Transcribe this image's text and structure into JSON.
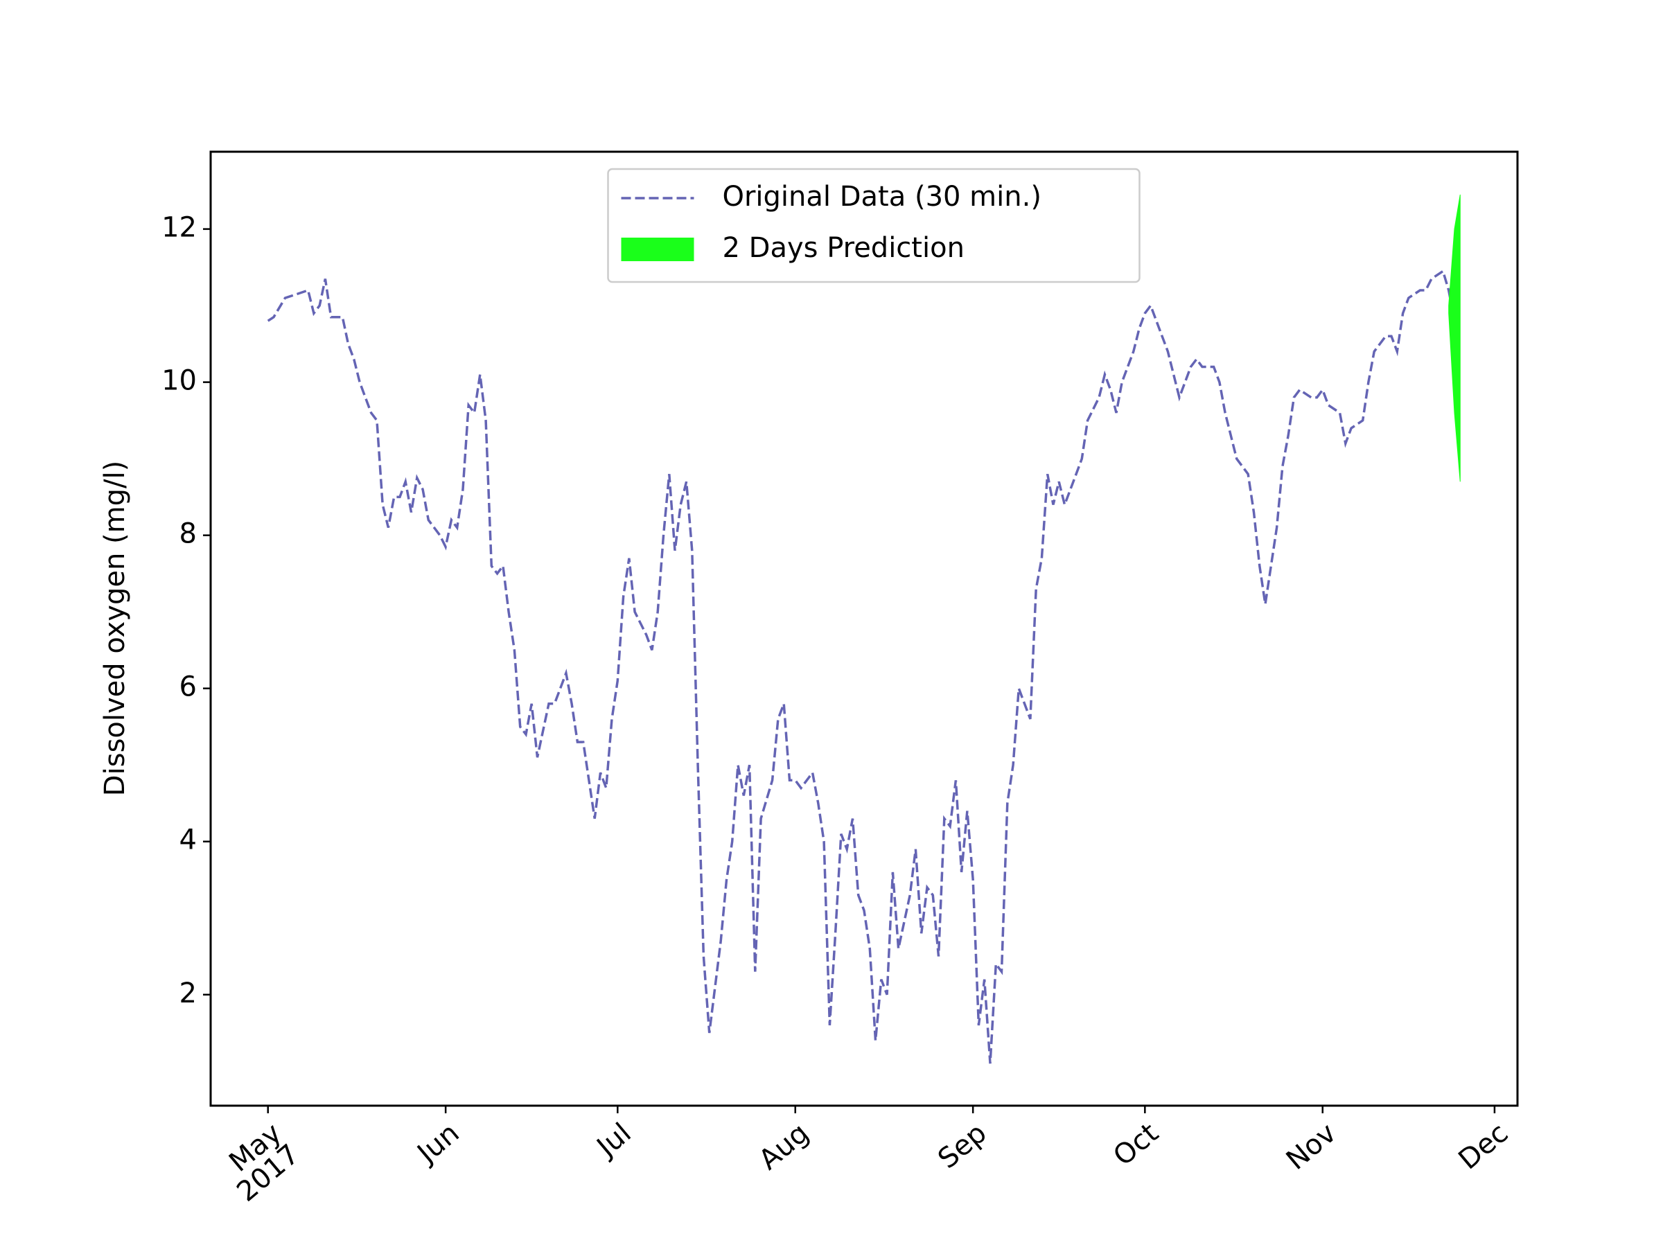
{
  "chart_data": {
    "type": "line",
    "ylabel": "Dissolved oxygen (mg/l)",
    "xlim": [
      "2017-04-21",
      "2017-12-05"
    ],
    "xticks": [
      {
        "value": "2017-05-01",
        "label": "May\n2017"
      },
      {
        "value": "2017-06-01",
        "label": "Jun"
      },
      {
        "value": "2017-07-01",
        "label": "Jul"
      },
      {
        "value": "2017-08-01",
        "label": "Aug"
      },
      {
        "value": "2017-09-01",
        "label": "Sep"
      },
      {
        "value": "2017-10-01",
        "label": "Oct"
      },
      {
        "value": "2017-11-01",
        "label": "Nov"
      },
      {
        "value": "2017-12-01",
        "label": "Dec"
      }
    ],
    "ylim": [
      0.55,
      13.01
    ],
    "yticks": [
      2,
      4,
      6,
      8,
      10,
      12
    ],
    "legend": "upper center",
    "series": [
      {
        "name": "Original Data (30 min.)",
        "color": "#6464b4",
        "style": "dashed",
        "x": [
          "2017-05-01",
          "2017-05-02",
          "2017-05-04",
          "2017-05-06",
          "2017-05-08",
          "2017-05-09",
          "2017-05-10",
          "2017-05-11",
          "2017-05-12",
          "2017-05-14",
          "2017-05-15",
          "2017-05-16",
          "2017-05-17",
          "2017-05-18",
          "2017-05-19",
          "2017-05-20",
          "2017-05-21",
          "2017-05-22",
          "2017-05-23",
          "2017-05-24",
          "2017-05-25",
          "2017-05-26",
          "2017-05-27",
          "2017-05-28",
          "2017-05-29",
          "2017-05-31",
          "2017-06-01",
          "2017-06-02",
          "2017-06-03",
          "2017-06-04",
          "2017-06-05",
          "2017-06-06",
          "2017-06-07",
          "2017-06-08",
          "2017-06-09",
          "2017-06-10",
          "2017-06-11",
          "2017-06-12",
          "2017-06-13",
          "2017-06-14",
          "2017-06-15",
          "2017-06-16",
          "2017-06-17",
          "2017-06-19",
          "2017-06-20",
          "2017-06-22",
          "2017-06-23",
          "2017-06-24",
          "2017-06-25",
          "2017-06-27",
          "2017-06-28",
          "2017-06-29",
          "2017-06-30",
          "2017-07-01",
          "2017-07-02",
          "2017-07-03",
          "2017-07-04",
          "2017-07-06",
          "2017-07-07",
          "2017-07-08",
          "2017-07-09",
          "2017-07-10",
          "2017-07-11",
          "2017-07-12",
          "2017-07-13",
          "2017-07-14",
          "2017-07-15",
          "2017-07-16",
          "2017-07-17",
          "2017-07-19",
          "2017-07-20",
          "2017-07-21",
          "2017-07-22",
          "2017-07-23",
          "2017-07-24",
          "2017-07-25",
          "2017-07-26",
          "2017-07-28",
          "2017-07-29",
          "2017-07-30",
          "2017-07-31",
          "2017-08-01",
          "2017-08-02",
          "2017-08-04",
          "2017-08-05",
          "2017-08-06",
          "2017-08-07",
          "2017-08-08",
          "2017-08-09",
          "2017-08-10",
          "2017-08-11",
          "2017-08-12",
          "2017-08-13",
          "2017-08-14",
          "2017-08-15",
          "2017-08-16",
          "2017-08-17",
          "2017-08-18",
          "2017-08-19",
          "2017-08-21",
          "2017-08-22",
          "2017-08-23",
          "2017-08-24",
          "2017-08-25",
          "2017-08-26",
          "2017-08-27",
          "2017-08-28",
          "2017-08-29",
          "2017-08-30",
          "2017-08-31",
          "2017-09-01",
          "2017-09-02",
          "2017-09-03",
          "2017-09-04",
          "2017-09-05",
          "2017-09-06",
          "2017-09-07",
          "2017-09-08",
          "2017-09-09",
          "2017-09-11",
          "2017-09-12",
          "2017-09-13",
          "2017-09-14",
          "2017-09-15",
          "2017-09-16",
          "2017-09-17",
          "2017-09-19",
          "2017-09-20",
          "2017-09-21",
          "2017-09-23",
          "2017-09-24",
          "2017-09-25",
          "2017-09-26",
          "2017-09-27",
          "2017-09-29",
          "2017-09-30",
          "2017-10-01",
          "2017-10-02",
          "2017-10-04",
          "2017-10-05",
          "2017-10-06",
          "2017-10-07",
          "2017-10-09",
          "2017-10-10",
          "2017-10-11",
          "2017-10-13",
          "2017-10-14",
          "2017-10-15",
          "2017-10-16",
          "2017-10-17",
          "2017-10-19",
          "2017-10-20",
          "2017-10-21",
          "2017-10-22",
          "2017-10-24",
          "2017-10-25",
          "2017-10-26",
          "2017-10-27",
          "2017-10-28",
          "2017-10-30",
          "2017-10-31",
          "2017-11-01",
          "2017-11-02",
          "2017-11-04",
          "2017-11-05",
          "2017-11-06",
          "2017-11-08",
          "2017-11-09",
          "2017-11-10",
          "2017-11-12",
          "2017-11-13",
          "2017-11-14",
          "2017-11-15",
          "2017-11-16",
          "2017-11-18",
          "2017-11-19",
          "2017-11-20",
          "2017-11-22",
          "2017-11-23",
          "2017-11-24"
        ],
        "values": [
          10.8,
          10.85,
          11.1,
          11.15,
          11.2,
          10.9,
          11.0,
          11.35,
          10.85,
          10.85,
          10.5,
          10.3,
          10.0,
          9.8,
          9.6,
          9.5,
          8.4,
          8.1,
          8.5,
          8.5,
          8.7,
          8.3,
          8.75,
          8.6,
          8.2,
          8.0,
          7.85,
          8.2,
          8.1,
          8.6,
          9.7,
          9.6,
          10.1,
          9.5,
          7.6,
          7.5,
          7.6,
          7.0,
          6.5,
          5.5,
          5.4,
          5.8,
          5.1,
          5.8,
          5.8,
          6.2,
          5.8,
          5.3,
          5.3,
          4.3,
          4.9,
          4.7,
          5.6,
          6.1,
          7.2,
          7.7,
          7.0,
          6.7,
          6.5,
          7.0,
          8.0,
          8.8,
          7.8,
          8.4,
          8.7,
          7.8,
          5.0,
          2.5,
          1.5,
          2.7,
          3.5,
          4.0,
          5.0,
          4.6,
          5.0,
          2.3,
          4.3,
          4.8,
          5.6,
          5.8,
          4.8,
          4.8,
          4.7,
          4.9,
          4.5,
          4.0,
          1.6,
          2.8,
          4.1,
          3.9,
          4.3,
          3.3,
          3.1,
          2.6,
          1.4,
          2.2,
          2.0,
          3.6,
          2.6,
          3.3,
          3.9,
          2.8,
          3.4,
          3.3,
          2.5,
          4.3,
          4.2,
          4.8,
          3.6,
          4.4,
          3.5,
          1.6,
          2.2,
          1.1,
          2.4,
          2.3,
          4.5,
          5.0,
          6.0,
          5.6,
          7.3,
          7.7,
          8.8,
          8.4,
          8.7,
          8.4,
          8.8,
          9.0,
          9.5,
          9.8,
          10.1,
          9.9,
          9.6,
          10.0,
          10.4,
          10.7,
          10.9,
          11.0,
          10.6,
          10.4,
          10.1,
          9.8,
          10.2,
          10.3,
          10.2,
          10.2,
          10.0,
          9.6,
          9.3,
          9.0,
          8.8,
          8.3,
          7.6,
          7.1,
          8.1,
          8.9,
          9.3,
          9.8,
          9.9,
          9.8,
          9.8,
          9.9,
          9.7,
          9.6,
          9.2,
          9.4,
          9.5,
          10.0,
          10.4,
          10.6,
          10.6,
          10.4,
          10.9,
          11.1,
          11.2,
          11.2,
          11.35,
          11.45,
          11.2,
          10.8
        ]
      },
      {
        "name": "2 Days Prediction",
        "color": "#1aff1a",
        "style": "band",
        "x": [
          "2017-11-23",
          "2017-11-24",
          "2017-11-25"
        ],
        "lower": [
          10.9,
          9.6,
          8.7
        ],
        "upper": [
          11.0,
          12.0,
          12.45
        ]
      }
    ]
  }
}
